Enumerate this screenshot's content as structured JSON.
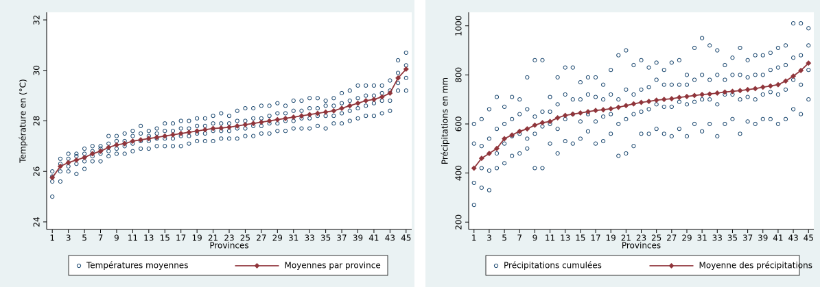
{
  "chart_data": [
    {
      "type": "scatter",
      "x_label": "Provinces",
      "y_label": "Température en (°C)",
      "xlim": [
        0.3,
        45.7
      ],
      "ylim": [
        23.7,
        32.3
      ],
      "xticks": [
        1,
        3,
        5,
        7,
        9,
        11,
        13,
        15,
        17,
        19,
        21,
        23,
        25,
        27,
        29,
        31,
        33,
        35,
        37,
        39,
        41,
        43,
        45
      ],
      "yticks": [
        24,
        26,
        28,
        30,
        32
      ],
      "series": [
        {
          "name": "Températures moyennes",
          "type": "scatter",
          "color": "#1a476f",
          "x": [
            1,
            1,
            1,
            1,
            2,
            2,
            2,
            2,
            3,
            3,
            3,
            3,
            4,
            4,
            4,
            4,
            5,
            5,
            5,
            5,
            6,
            6,
            6,
            6,
            7,
            7,
            7,
            7,
            8,
            8,
            8,
            8,
            9,
            9,
            9,
            9,
            10,
            10,
            10,
            10,
            11,
            11,
            11,
            11,
            12,
            12,
            12,
            12,
            13,
            13,
            13,
            13,
            14,
            14,
            14,
            14,
            15,
            15,
            15,
            15,
            16,
            16,
            16,
            16,
            17,
            17,
            17,
            17,
            18,
            18,
            18,
            18,
            19,
            19,
            19,
            19,
            20,
            20,
            20,
            20,
            21,
            21,
            21,
            21,
            22,
            22,
            22,
            22,
            23,
            23,
            23,
            23,
            24,
            24,
            24,
            24,
            25,
            25,
            25,
            25,
            26,
            26,
            26,
            26,
            27,
            27,
            27,
            27,
            28,
            28,
            28,
            28,
            29,
            29,
            29,
            29,
            30,
            30,
            30,
            30,
            31,
            31,
            31,
            31,
            32,
            32,
            32,
            32,
            33,
            33,
            33,
            33,
            34,
            34,
            34,
            34,
            35,
            35,
            35,
            35,
            36,
            36,
            36,
            36,
            37,
            37,
            37,
            37,
            38,
            38,
            38,
            38,
            39,
            39,
            39,
            39,
            40,
            40,
            40,
            40,
            41,
            41,
            41,
            41,
            42,
            42,
            42,
            42,
            43,
            43,
            43,
            43,
            44,
            44,
            44,
            44,
            45,
            45,
            45,
            45
          ],
          "values": [
            25.0,
            25.6,
            25.8,
            26.0,
            25.6,
            26.0,
            26.3,
            26.5,
            26.0,
            26.2,
            26.5,
            26.7,
            25.9,
            26.3,
            26.6,
            26.7,
            26.1,
            26.4,
            26.7,
            26.9,
            26.4,
            26.6,
            26.8,
            27.0,
            26.4,
            26.7,
            26.9,
            27.0,
            26.6,
            26.8,
            27.1,
            27.4,
            26.7,
            26.9,
            27.2,
            27.4,
            26.7,
            27.0,
            27.2,
            27.5,
            26.8,
            27.1,
            27.4,
            27.6,
            26.9,
            27.2,
            27.5,
            27.8,
            26.9,
            27.2,
            27.4,
            27.6,
            27.0,
            27.3,
            27.5,
            27.7,
            27.0,
            27.3,
            27.6,
            27.9,
            27.0,
            27.3,
            27.6,
            27.9,
            27.0,
            27.4,
            27.7,
            28.0,
            27.1,
            27.4,
            27.7,
            28.0,
            27.2,
            27.5,
            27.8,
            28.1,
            27.2,
            27.5,
            27.8,
            28.1,
            27.2,
            27.6,
            27.9,
            28.2,
            27.3,
            27.6,
            27.9,
            28.3,
            27.3,
            27.6,
            27.9,
            28.2,
            27.3,
            27.7,
            28.0,
            28.4,
            27.4,
            27.7,
            28.0,
            28.5,
            27.4,
            27.8,
            28.1,
            28.5,
            27.5,
            27.8,
            28.1,
            28.6,
            27.5,
            27.9,
            28.2,
            28.6,
            27.6,
            27.9,
            28.3,
            28.7,
            27.6,
            28.0,
            28.3,
            28.6,
            27.7,
            28.0,
            28.4,
            28.8,
            27.7,
            28.1,
            28.4,
            28.8,
            27.7,
            28.1,
            28.5,
            28.9,
            27.8,
            28.2,
            28.5,
            28.9,
            27.7,
            28.2,
            28.6,
            28.8,
            27.9,
            28.2,
            28.6,
            28.9,
            27.9,
            28.3,
            28.7,
            29.1,
            28.0,
            28.4,
            28.8,
            29.2,
            28.1,
            28.5,
            28.9,
            29.4,
            28.2,
            28.6,
            29.0,
            29.4,
            28.2,
            28.7,
            29.0,
            29.4,
            28.3,
            28.8,
            29.1,
            29.4,
            28.4,
            28.8,
            29.2,
            29.6,
            29.2,
            29.5,
            29.9,
            30.4,
            29.2,
            29.7,
            30.2,
            30.7
          ]
        },
        {
          "name": "Moyennes par province",
          "type": "line",
          "color": "#90353b",
          "x": [
            1,
            2,
            3,
            4,
            5,
            6,
            7,
            8,
            9,
            10,
            11,
            12,
            13,
            14,
            15,
            16,
            17,
            18,
            19,
            20,
            21,
            22,
            23,
            24,
            25,
            26,
            27,
            28,
            29,
            30,
            31,
            32,
            33,
            34,
            35,
            36,
            37,
            38,
            39,
            40,
            41,
            42,
            43,
            44,
            45
          ],
          "values": [
            25.75,
            26.2,
            26.35,
            26.45,
            26.55,
            26.7,
            26.8,
            26.95,
            27.05,
            27.1,
            27.2,
            27.25,
            27.3,
            27.35,
            27.4,
            27.45,
            27.5,
            27.55,
            27.6,
            27.65,
            27.7,
            27.72,
            27.75,
            27.8,
            27.85,
            27.9,
            27.95,
            28.0,
            28.05,
            28.1,
            28.15,
            28.2,
            28.25,
            28.3,
            28.35,
            28.4,
            28.5,
            28.6,
            28.7,
            28.8,
            28.85,
            28.95,
            29.1,
            29.7,
            30.05
          ]
        }
      ]
    },
    {
      "type": "scatter",
      "x_label": "Provinces",
      "y_label": "Précipitations en mm",
      "xlim": [
        0.3,
        45.7
      ],
      "ylim": [
        170,
        1055
      ],
      "xticks": [
        1,
        3,
        5,
        7,
        9,
        11,
        13,
        15,
        17,
        19,
        21,
        23,
        25,
        27,
        29,
        31,
        33,
        35,
        37,
        39,
        41,
        43,
        45
      ],
      "yticks": [
        200,
        400,
        600,
        800,
        1000
      ],
      "series": [
        {
          "name": "Précipitations cumulées",
          "type": "scatter",
          "color": "#1a476f",
          "x": [
            1,
            1,
            1,
            1,
            2,
            2,
            2,
            2,
            3,
            3,
            3,
            3,
            4,
            4,
            4,
            4,
            5,
            5,
            5,
            5,
            6,
            6,
            6,
            6,
            7,
            7,
            7,
            7,
            8,
            8,
            8,
            8,
            9,
            9,
            9,
            9,
            10,
            10,
            10,
            10,
            11,
            11,
            11,
            11,
            12,
            12,
            12,
            12,
            13,
            13,
            13,
            13,
            14,
            14,
            14,
            14,
            15,
            15,
            15,
            15,
            16,
            16,
            16,
            16,
            17,
            17,
            17,
            17,
            18,
            18,
            18,
            18,
            19,
            19,
            19,
            19,
            20,
            20,
            20,
            20,
            21,
            21,
            21,
            21,
            22,
            22,
            22,
            22,
            23,
            23,
            23,
            23,
            24,
            24,
            24,
            24,
            25,
            25,
            25,
            25,
            26,
            26,
            26,
            26,
            27,
            27,
            27,
            27,
            28,
            28,
            28,
            28,
            29,
            29,
            29,
            29,
            30,
            30,
            30,
            30,
            31,
            31,
            31,
            31,
            32,
            32,
            32,
            32,
            33,
            33,
            33,
            33,
            34,
            34,
            34,
            34,
            35,
            35,
            35,
            35,
            36,
            36,
            36,
            36,
            37,
            37,
            37,
            37,
            38,
            38,
            38,
            38,
            39,
            39,
            39,
            39,
            40,
            40,
            40,
            40,
            41,
            41,
            41,
            41,
            42,
            42,
            42,
            42,
            43,
            43,
            43,
            43,
            44,
            44,
            44,
            44,
            45,
            45,
            45,
            45
          ],
          "values": [
            270,
            360,
            520,
            600,
            340,
            420,
            510,
            620,
            330,
            410,
            540,
            660,
            420,
            480,
            580,
            710,
            440,
            520,
            600,
            670,
            470,
            550,
            620,
            710,
            480,
            560,
            640,
            700,
            500,
            540,
            660,
            790,
            420,
            560,
            630,
            860,
            420,
            590,
            650,
            860,
            520,
            600,
            650,
            710,
            480,
            580,
            680,
            790,
            530,
            620,
            720,
            830,
            520,
            640,
            700,
            830,
            540,
            610,
            700,
            770,
            570,
            640,
            720,
            790,
            520,
            610,
            710,
            790,
            530,
            630,
            700,
            760,
            560,
            640,
            720,
            820,
            470,
            600,
            700,
            880,
            480,
            620,
            740,
            900,
            510,
            640,
            720,
            840,
            560,
            650,
            740,
            860,
            560,
            660,
            750,
            830,
            580,
            680,
            780,
            850,
            560,
            670,
            760,
            820,
            550,
            670,
            760,
            850,
            580,
            690,
            760,
            860,
            550,
            680,
            760,
            800,
            600,
            690,
            780,
            910,
            570,
            700,
            800,
            950,
            600,
            700,
            780,
            920,
            550,
            680,
            800,
            900,
            600,
            720,
            780,
            840,
            620,
            720,
            800,
            870,
            560,
            700,
            800,
            910,
            610,
            710,
            790,
            860,
            600,
            700,
            800,
            880,
            620,
            720,
            800,
            880,
            620,
            730,
            820,
            890,
            600,
            720,
            830,
            910,
            620,
            740,
            840,
            920,
            660,
            780,
            870,
            1010,
            640,
            760,
            880,
            1010,
            700,
            820,
            920,
            990
          ]
        },
        {
          "name": "Moyenne des précipitations",
          "type": "line",
          "color": "#90353b",
          "x": [
            1,
            2,
            3,
            4,
            5,
            6,
            7,
            8,
            9,
            10,
            11,
            12,
            13,
            14,
            15,
            16,
            17,
            18,
            19,
            20,
            21,
            22,
            23,
            24,
            25,
            26,
            27,
            28,
            29,
            30,
            31,
            32,
            33,
            34,
            35,
            36,
            37,
            38,
            39,
            40,
            41,
            42,
            43,
            44,
            45
          ],
          "values": [
            420,
            460,
            480,
            500,
            540,
            555,
            570,
            580,
            595,
            605,
            610,
            625,
            635,
            640,
            645,
            650,
            655,
            658,
            662,
            668,
            675,
            682,
            688,
            692,
            697,
            700,
            703,
            708,
            712,
            716,
            720,
            722,
            726,
            730,
            733,
            736,
            740,
            744,
            750,
            755,
            760,
            775,
            795,
            818,
            848
          ]
        }
      ]
    }
  ]
}
